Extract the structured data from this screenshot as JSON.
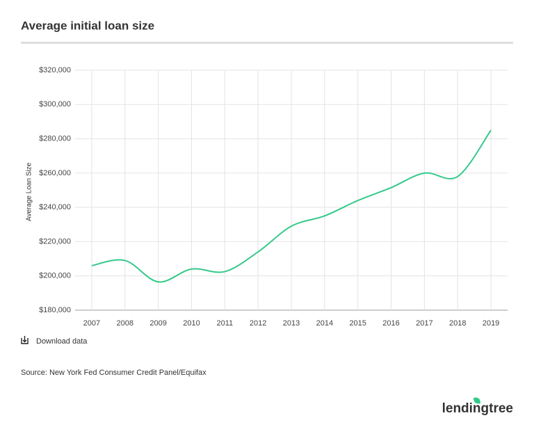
{
  "chart_data": {
    "type": "line",
    "title": "Average initial loan size",
    "y_label": "Average Loan Size",
    "x": [
      2007,
      2008,
      2009,
      2010,
      2011,
      2012,
      2013,
      2014,
      2015,
      2016,
      2017,
      2018,
      2019
    ],
    "series": [
      {
        "name": "Average initial loan size",
        "color": "#34c98a",
        "values": [
          206000,
          209000,
          196500,
          204000,
          202500,
          214000,
          229000,
          235000,
          244000,
          251500,
          260000,
          258000,
          285000
        ]
      }
    ],
    "xlim": [
      2006.5,
      2019.5
    ],
    "xticks": [
      2007,
      2008,
      2009,
      2010,
      2011,
      2012,
      2013,
      2014,
      2015,
      2016,
      2017,
      2018,
      2019
    ],
    "ylim": [
      180000,
      320000
    ],
    "yticks": [
      {
        "value": 180000,
        "label": "$180,000"
      },
      {
        "value": 200000,
        "label": "$200,000"
      },
      {
        "value": 220000,
        "label": "$220,000"
      },
      {
        "value": 240000,
        "label": "$240,000"
      },
      {
        "value": 260000,
        "label": "$260,000"
      },
      {
        "value": 280000,
        "label": "$280,000"
      },
      {
        "value": 300000,
        "label": "$300,000"
      },
      {
        "value": 320000,
        "label": "$320,000"
      }
    ],
    "grid": true
  },
  "download": "Download data",
  "source": "Source: New York Fed Consumer Credit Panel/Equifax",
  "logo": "lendingtree"
}
